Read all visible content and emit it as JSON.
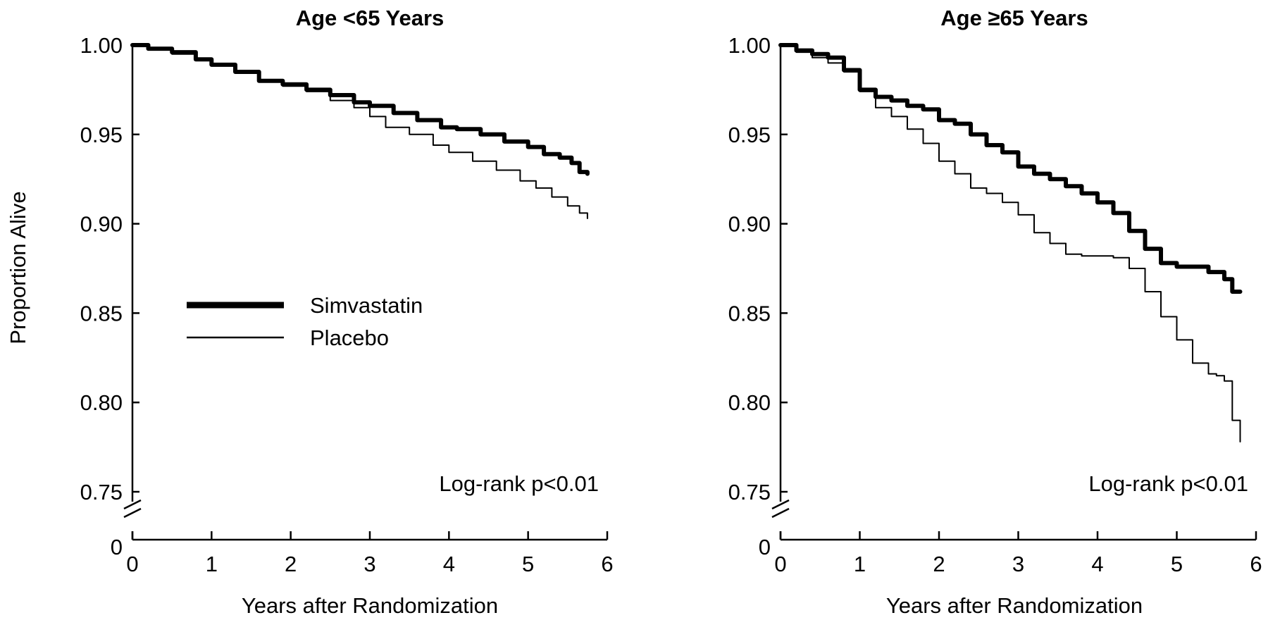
{
  "chart_data": [
    {
      "type": "line",
      "title": "Age <65 Years",
      "xlabel": "Years after Randomization",
      "ylabel": "Proportion Alive",
      "xlim": [
        0,
        6
      ],
      "ylim": [
        0.75,
        1.0
      ],
      "x_ticks": [
        "0",
        "1",
        "2",
        "3",
        "4",
        "5",
        "6"
      ],
      "y_ticks": [
        "1.00",
        "0.95",
        "0.90",
        "0.85",
        "0.80",
        "0.75"
      ],
      "y_axis_zero": "0",
      "annotation": "Log-rank p<0.01",
      "legend": {
        "position": "center-left",
        "entries": [
          "Simvastatin",
          "Placebo"
        ]
      },
      "grid": false,
      "series": [
        {
          "name": "Simvastatin",
          "color": "#000000",
          "weight": "thick",
          "points": [
            [
              0,
              1.0
            ],
            [
              0.2,
              0.998
            ],
            [
              0.5,
              0.996
            ],
            [
              0.8,
              0.992
            ],
            [
              1.0,
              0.989
            ],
            [
              1.3,
              0.985
            ],
            [
              1.6,
              0.98
            ],
            [
              1.9,
              0.978
            ],
            [
              2.2,
              0.975
            ],
            [
              2.5,
              0.972
            ],
            [
              2.8,
              0.968
            ],
            [
              3.0,
              0.966
            ],
            [
              3.3,
              0.962
            ],
            [
              3.6,
              0.958
            ],
            [
              3.9,
              0.954
            ],
            [
              4.1,
              0.953
            ],
            [
              4.4,
              0.95
            ],
            [
              4.7,
              0.946
            ],
            [
              5.0,
              0.943
            ],
            [
              5.2,
              0.939
            ],
            [
              5.4,
              0.937
            ],
            [
              5.55,
              0.934
            ],
            [
              5.65,
              0.929
            ],
            [
              5.75,
              0.928
            ]
          ]
        },
        {
          "name": "Placebo",
          "color": "#000000",
          "weight": "thin",
          "points": [
            [
              0,
              1.0
            ],
            [
              0.2,
              0.998
            ],
            [
              0.5,
              0.995
            ],
            [
              0.8,
              0.992
            ],
            [
              1.0,
              0.989
            ],
            [
              1.3,
              0.985
            ],
            [
              1.6,
              0.98
            ],
            [
              1.9,
              0.977
            ],
            [
              2.2,
              0.974
            ],
            [
              2.5,
              0.969
            ],
            [
              2.8,
              0.965
            ],
            [
              3.0,
              0.96
            ],
            [
              3.2,
              0.954
            ],
            [
              3.5,
              0.95
            ],
            [
              3.8,
              0.944
            ],
            [
              4.0,
              0.94
            ],
            [
              4.3,
              0.935
            ],
            [
              4.6,
              0.93
            ],
            [
              4.9,
              0.924
            ],
            [
              5.1,
              0.92
            ],
            [
              5.3,
              0.915
            ],
            [
              5.5,
              0.91
            ],
            [
              5.65,
              0.906
            ],
            [
              5.75,
              0.903
            ]
          ]
        }
      ]
    },
    {
      "type": "line",
      "title": "Age ≥65 Years",
      "xlabel": "Years after Randomization",
      "ylabel": "",
      "xlim": [
        0,
        6
      ],
      "ylim": [
        0.75,
        1.0
      ],
      "x_ticks": [
        "0",
        "1",
        "2",
        "3",
        "4",
        "5",
        "6"
      ],
      "y_ticks": [
        "1.00",
        "0.95",
        "0.90",
        "0.85",
        "0.80",
        "0.75"
      ],
      "y_axis_zero": "0",
      "annotation": "Log-rank p<0.01",
      "grid": false,
      "series": [
        {
          "name": "Simvastatin",
          "color": "#000000",
          "weight": "thick",
          "points": [
            [
              0,
              1.0
            ],
            [
              0.2,
              0.997
            ],
            [
              0.4,
              0.995
            ],
            [
              0.6,
              0.993
            ],
            [
              0.8,
              0.986
            ],
            [
              1.0,
              0.975
            ],
            [
              1.2,
              0.971
            ],
            [
              1.4,
              0.969
            ],
            [
              1.6,
              0.966
            ],
            [
              1.8,
              0.964
            ],
            [
              2.0,
              0.958
            ],
            [
              2.2,
              0.956
            ],
            [
              2.4,
              0.95
            ],
            [
              2.6,
              0.944
            ],
            [
              2.8,
              0.94
            ],
            [
              3.0,
              0.932
            ],
            [
              3.2,
              0.928
            ],
            [
              3.4,
              0.925
            ],
            [
              3.6,
              0.921
            ],
            [
              3.8,
              0.917
            ],
            [
              4.0,
              0.912
            ],
            [
              4.2,
              0.906
            ],
            [
              4.4,
              0.896
            ],
            [
              4.6,
              0.886
            ],
            [
              4.8,
              0.878
            ],
            [
              5.0,
              0.876
            ],
            [
              5.2,
              0.876
            ],
            [
              5.4,
              0.873
            ],
            [
              5.6,
              0.869
            ],
            [
              5.7,
              0.862
            ],
            [
              5.8,
              0.862
            ]
          ]
        },
        {
          "name": "Placebo",
          "color": "#000000",
          "weight": "thin",
          "points": [
            [
              0,
              1.0
            ],
            [
              0.2,
              0.996
            ],
            [
              0.4,
              0.993
            ],
            [
              0.6,
              0.99
            ],
            [
              0.8,
              0.985
            ],
            [
              1.0,
              0.974
            ],
            [
              1.2,
              0.965
            ],
            [
              1.4,
              0.96
            ],
            [
              1.6,
              0.953
            ],
            [
              1.8,
              0.945
            ],
            [
              2.0,
              0.935
            ],
            [
              2.2,
              0.928
            ],
            [
              2.4,
              0.92
            ],
            [
              2.6,
              0.917
            ],
            [
              2.8,
              0.912
            ],
            [
              3.0,
              0.905
            ],
            [
              3.2,
              0.895
            ],
            [
              3.4,
              0.889
            ],
            [
              3.6,
              0.883
            ],
            [
              3.8,
              0.882
            ],
            [
              4.0,
              0.882
            ],
            [
              4.2,
              0.881
            ],
            [
              4.4,
              0.875
            ],
            [
              4.6,
              0.862
            ],
            [
              4.8,
              0.848
            ],
            [
              5.0,
              0.835
            ],
            [
              5.2,
              0.822
            ],
            [
              5.4,
              0.816
            ],
            [
              5.5,
              0.815
            ],
            [
              5.6,
              0.812
            ],
            [
              5.7,
              0.79
            ],
            [
              5.8,
              0.778
            ]
          ]
        }
      ]
    }
  ]
}
